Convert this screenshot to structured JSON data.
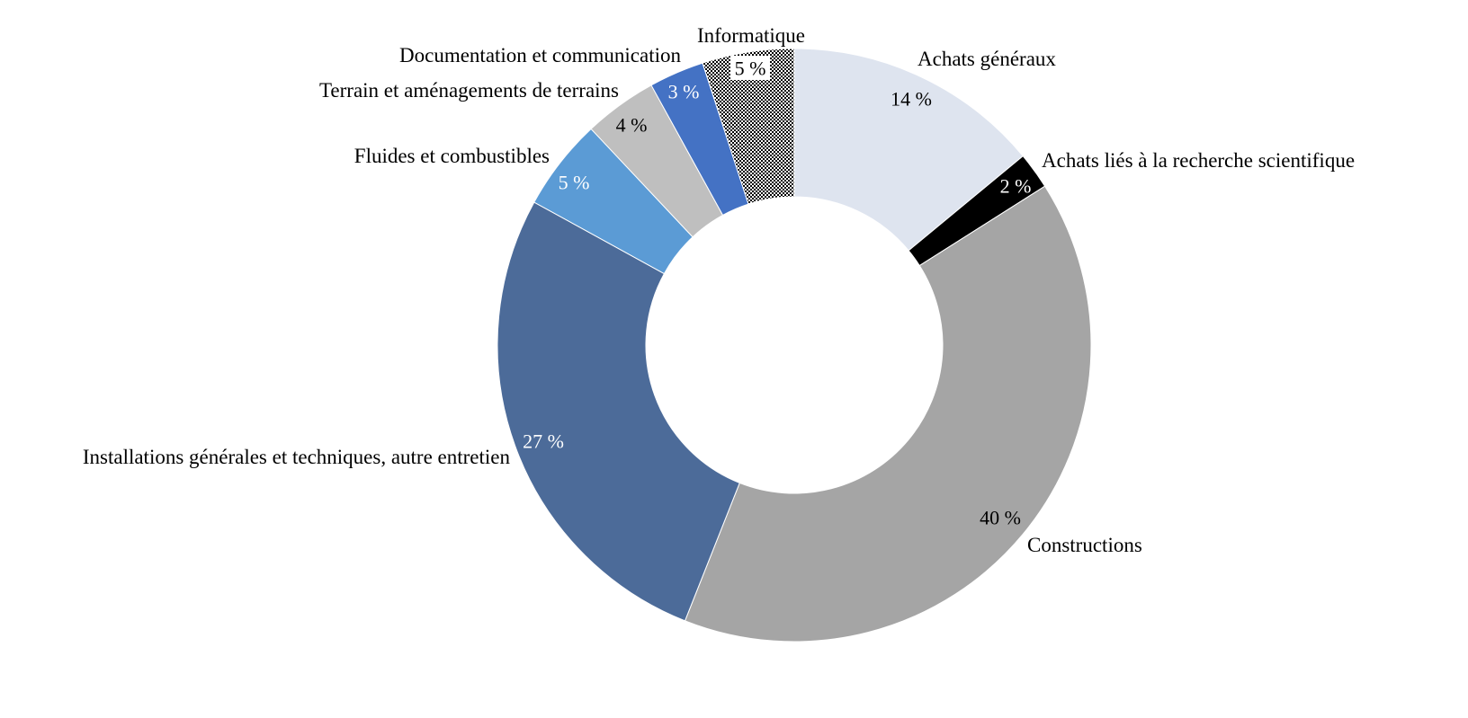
{
  "chart_data": {
    "type": "pie",
    "style": "donut",
    "unit": "%",
    "slices": [
      {
        "label": "Achats généraux",
        "value": 14,
        "value_text": "14 %",
        "color": "#DEE4EF",
        "text_color": "#000000"
      },
      {
        "label": "Achats liés à la recherche scientifique",
        "value": 2,
        "value_text": "2 %",
        "color": "#000000",
        "text_color": "#ffffff"
      },
      {
        "label": "Constructions",
        "value": 40,
        "value_text": "40 %",
        "color": "#A5A5A5",
        "text_color": "#000000"
      },
      {
        "label": "Installations générales et techniques, autre entretien",
        "value": 27,
        "value_text": "27 %",
        "color": "#4C6B99",
        "text_color": "#ffffff"
      },
      {
        "label": "Fluides et combustibles",
        "value": 5,
        "value_text": "5 %",
        "color": "#5B9BD5",
        "text_color": "#ffffff"
      },
      {
        "label": "Terrain et aménagements de terrains",
        "value": 4,
        "value_text": "4 %",
        "color": "#BFBFBF",
        "text_color": "#000000"
      },
      {
        "label": "Documentation et communication",
        "value": 3,
        "value_text": "3 %",
        "color": "#4472C4",
        "text_color": "#ffffff"
      },
      {
        "label": "Informatique",
        "value": 5,
        "value_text": "5 %",
        "color": "#000000",
        "pattern": "dots",
        "text_color": "#000000"
      }
    ]
  }
}
